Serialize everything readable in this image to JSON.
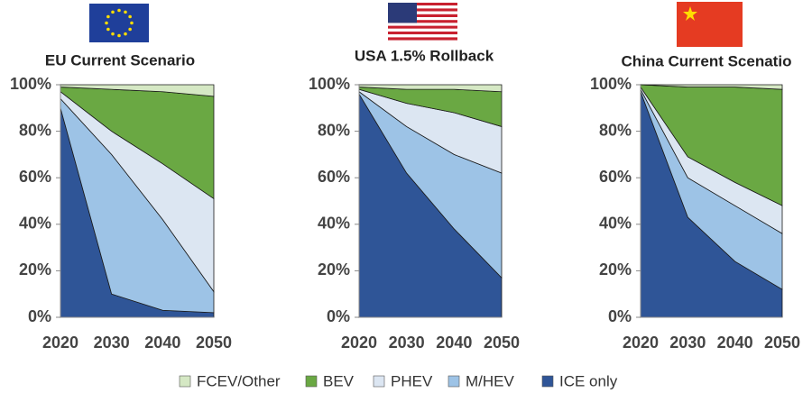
{
  "chart_data": [
    {
      "type": "area",
      "title": "EU Current Scenario",
      "x": [
        2020,
        2030,
        2040,
        2050
      ],
      "series": [
        {
          "name": "ICE only",
          "color": "#2f5597",
          "values": [
            90,
            10,
            3,
            2
          ]
        },
        {
          "name": "M/HEV",
          "color": "#9dc3e6",
          "values": [
            4,
            60,
            39,
            9
          ]
        },
        {
          "name": "PHEV",
          "color": "#dce6f2",
          "values": [
            3,
            10,
            24,
            40
          ]
        },
        {
          "name": "BEV",
          "color": "#6aa843",
          "values": [
            2,
            18,
            31,
            44
          ]
        },
        {
          "name": "FCEV/Other",
          "color": "#d5e8c4",
          "values": [
            1,
            2,
            3,
            5
          ]
        }
      ],
      "ylim": [
        0,
        100
      ],
      "yticks": [
        {
          "value": 0,
          "label": "0%"
        },
        {
          "value": 20,
          "label": "20%"
        },
        {
          "value": 40,
          "label": "40%"
        },
        {
          "value": 60,
          "label": "60%"
        },
        {
          "value": 80,
          "label": "80%"
        },
        {
          "value": 100,
          "label": "100%"
        }
      ]
    },
    {
      "type": "area",
      "title": "USA 1.5% Rollback",
      "x": [
        2020,
        2030,
        2040,
        2050
      ],
      "series": [
        {
          "name": "ICE only",
          "color": "#2f5597",
          "values": [
            96,
            62,
            38,
            17
          ]
        },
        {
          "name": "M/HEV",
          "color": "#9dc3e6",
          "values": [
            1,
            20,
            32,
            45
          ]
        },
        {
          "name": "PHEV",
          "color": "#dce6f2",
          "values": [
            1,
            10,
            18,
            20
          ]
        },
        {
          "name": "BEV",
          "color": "#6aa843",
          "values": [
            1,
            6,
            10,
            15
          ]
        },
        {
          "name": "FCEV/Other",
          "color": "#d5e8c4",
          "values": [
            1,
            2,
            2,
            3
          ]
        }
      ],
      "ylim": [
        0,
        100
      ],
      "yticks": [
        {
          "value": 0,
          "label": "0%"
        },
        {
          "value": 20,
          "label": "20%"
        },
        {
          "value": 40,
          "label": "40%"
        },
        {
          "value": 60,
          "label": "60%"
        },
        {
          "value": 80,
          "label": "80%"
        },
        {
          "value": 100,
          "label": "100%"
        }
      ]
    },
    {
      "type": "area",
      "title": "China Current Scenatio",
      "x": [
        2020,
        2030,
        2040,
        2050
      ],
      "series": [
        {
          "name": "ICE only",
          "color": "#2f5597",
          "values": [
            97,
            43,
            24,
            12
          ]
        },
        {
          "name": "M/HEV",
          "color": "#9dc3e6",
          "values": [
            1,
            17,
            24,
            24
          ]
        },
        {
          "name": "PHEV",
          "color": "#dce6f2",
          "values": [
            1,
            9,
            10,
            12
          ]
        },
        {
          "name": "BEV",
          "color": "#6aa843",
          "values": [
            1,
            30,
            41,
            50
          ]
        },
        {
          "name": "FCEV/Other",
          "color": "#d5e8c4",
          "values": [
            0,
            1,
            1,
            2
          ]
        }
      ],
      "ylim": [
        0,
        100
      ],
      "yticks": [
        {
          "value": 0,
          "label": "0%"
        },
        {
          "value": 20,
          "label": "20%"
        },
        {
          "value": 40,
          "label": "40%"
        },
        {
          "value": 60,
          "label": "60%"
        },
        {
          "value": 80,
          "label": "80%"
        },
        {
          "value": 100,
          "label": "100%"
        }
      ]
    }
  ]
}
